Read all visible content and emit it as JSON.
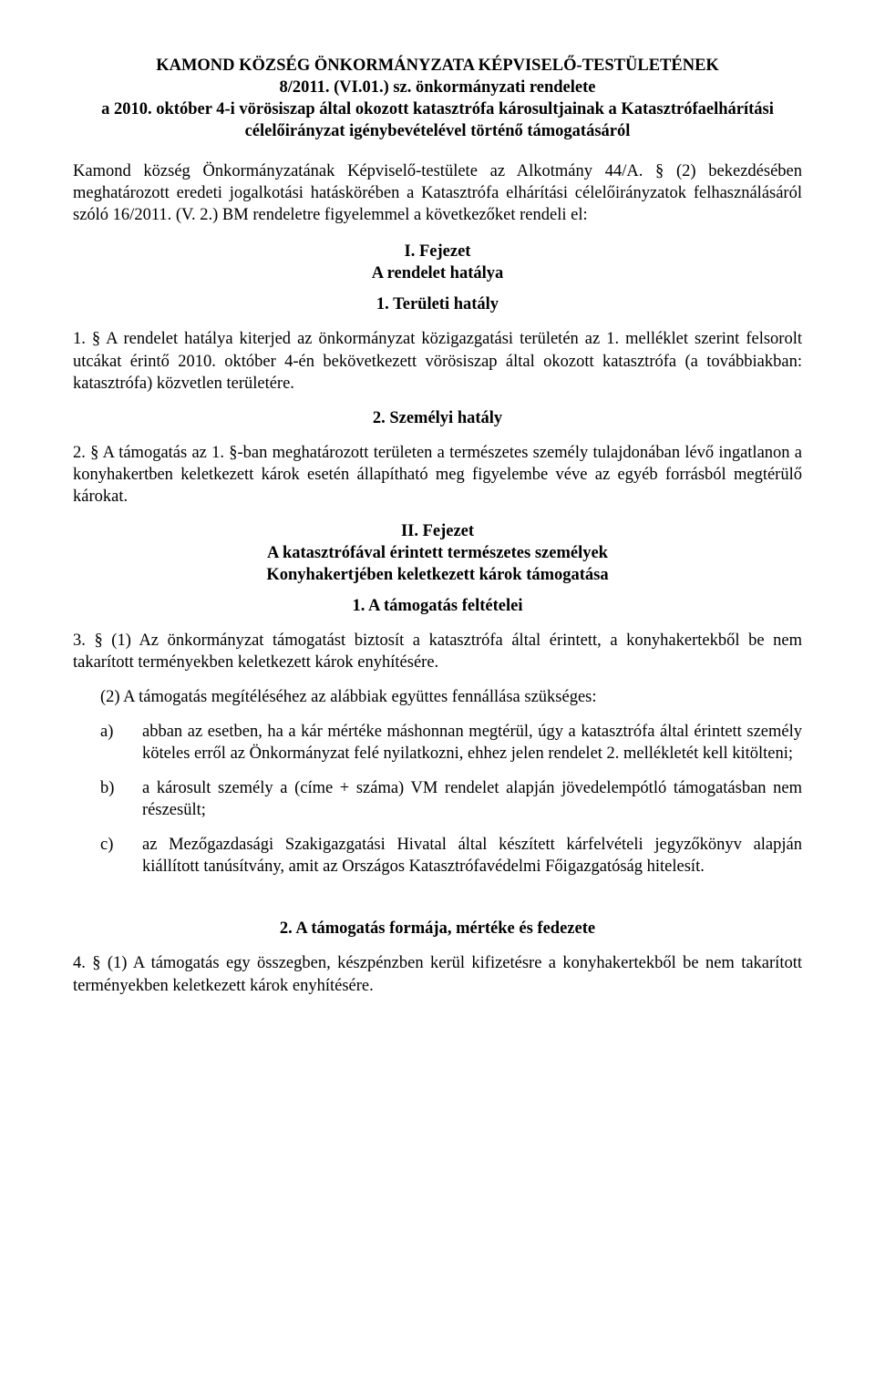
{
  "title": {
    "line1": "KAMOND KÖZSÉG ÖNKORMÁNYZATA KÉPVISELŐ-TESTÜLETÉNEK",
    "line2": "8/2011. (VI.01.) sz. önkormányzati rendelete",
    "line3": "a 2010. október 4-i vörösiszap által okozott katasztrófa károsultjainak a Katasztrófaelhárítási célelőirányzat igénybevételével történő támogatásáról"
  },
  "preamble": "Kamond község Önkormányzatának Képviselő-testülete az Alkotmány 44/A. § (2) bekezdésében meghatározott eredeti jogalkotási hatáskörében a Katasztrófa elhárítási célelőirányzatok felhasználásáról szóló 16/2011. (V. 2.) BM rendeletre figyelemmel a következőket rendeli el:",
  "chapter1": {
    "heading1": "I. Fejezet",
    "heading2": "A rendelet hatálya",
    "sub1": "1. Területi hatály",
    "p1": "1. § A rendelet hatálya kiterjed az önkormányzat közigazgatási területén az 1. melléklet szerint felsorolt utcákat érintő 2010. október 4-én bekövetkezett vörösiszap által okozott katasztrófa (a továbbiakban: katasztrófa) közvetlen területére.",
    "sub2": "2. Személyi hatály",
    "p2": "2. § A támogatás az 1. §-ban meghatározott területen a természetes személy tulajdonában lévő ingatlanon a konyhakertben keletkezett károk esetén állapítható meg figyelembe véve az egyéb forrásból megtérülő károkat."
  },
  "chapter2": {
    "heading1": "II. Fejezet",
    "heading2": "A katasztrófával érintett természetes személyek",
    "heading3": "Konyhakertjében keletkezett károk támogatása",
    "sub1": "1. A támogatás feltételei",
    "p3_1": "3. § (1) Az önkormányzat támogatást biztosít a katasztrófa által érintett, a konyhakertekből be nem takarított terményekben keletkezett károk enyhítésére.",
    "p3_2": "(2) A támogatás megítéléséhez az alábbiak együttes fennállása szükséges:",
    "items": [
      {
        "letter": "a)",
        "text": "abban az esetben, ha a kár mértéke máshonnan megtérül, úgy a katasztrófa által érintett személy köteles erről az Önkormányzat felé nyilatkozni, ehhez jelen rendelet 2. mellékletét kell kitölteni;"
      },
      {
        "letter": "b)",
        "text": "a károsult személy a (címe + száma) VM rendelet alapján jövedelempótló támogatásban nem részesült;"
      },
      {
        "letter": "c)",
        "text": "az Mezőgazdasági Szakigazgatási Hivatal által készített kárfelvételi jegyzőkönyv alapján kiállított tanúsítvány, amit az Országos Katasztrófavédelmi Főigazgatóság hitelesít."
      }
    ],
    "sub2": "2. A támogatás formája, mértéke és fedezete",
    "p4_1": "4. § (1) A támogatás egy összegben, készpénzben kerül kifizetésre a konyhakertekből be nem takarított terményekben keletkezett károk enyhítésére."
  }
}
